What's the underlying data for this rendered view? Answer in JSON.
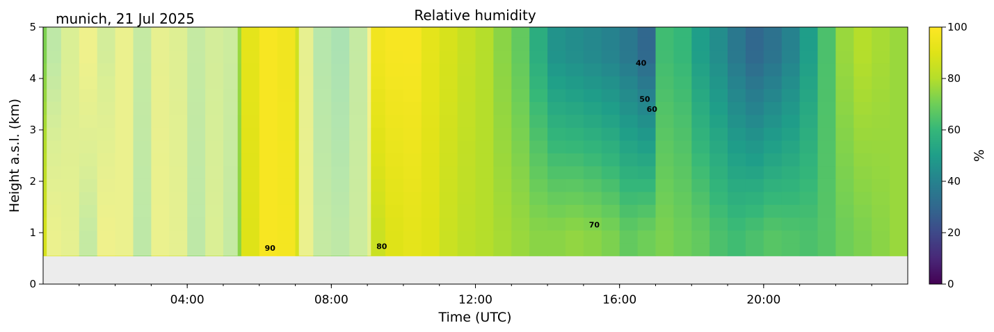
{
  "chart_data": {
    "type": "heatmap",
    "title": "Relative humidity",
    "subtitle": "munich, 21 Jul 2025",
    "xlabel": "Time (UTC)",
    "ylabel": "Height a.s.l. (km)",
    "xlim_hours": [
      0,
      24
    ],
    "ylim": [
      0,
      5
    ],
    "x_ticks": [
      "04:00",
      "08:00",
      "12:00",
      "16:00",
      "20:00"
    ],
    "x_tick_hours": [
      4,
      8,
      12,
      16,
      20
    ],
    "y_ticks": [
      "0",
      "1",
      "2",
      "3",
      "4",
      "5"
    ],
    "y_tick_values": [
      0,
      1,
      2,
      3,
      4,
      5
    ],
    "colorbar": {
      "label": "%",
      "range": [
        0,
        100
      ],
      "ticks": [
        "0",
        "20",
        "40",
        "60",
        "80",
        "100"
      ],
      "tick_values": [
        0,
        20,
        40,
        60,
        80,
        100
      ]
    },
    "data_floor_km": 0.55,
    "contour_labels": [
      {
        "text": "90",
        "hour": 6.3,
        "height": 0.65
      },
      {
        "text": "80",
        "hour": 9.4,
        "height": 0.68
      },
      {
        "text": "70",
        "hour": 15.3,
        "height": 1.1
      },
      {
        "text": "60",
        "hour": 16.9,
        "height": 3.35
      },
      {
        "text": "50",
        "hour": 16.7,
        "height": 3.55
      },
      {
        "text": "40",
        "hour": 16.6,
        "height": 4.25
      }
    ],
    "masked_periods_hours": [
      [
        0.1,
        5.4
      ],
      [
        7.1,
        9.1
      ]
    ],
    "time_columns_hours": [
      0.25,
      0.75,
      1.25,
      1.75,
      2.25,
      2.75,
      3.25,
      3.75,
      4.25,
      4.75,
      5.25,
      5.75,
      6.25,
      6.75,
      7.25,
      7.75,
      8.25,
      8.75,
      9.25,
      9.75,
      10.25,
      10.75,
      11.25,
      11.75,
      12.25,
      12.75,
      13.25,
      13.75,
      14.25,
      14.75,
      15.25,
      15.75,
      16.25,
      16.75,
      17.25,
      17.75,
      18.25,
      18.75,
      19.25,
      19.75,
      20.25,
      20.75,
      21.25,
      21.75,
      22.25,
      22.75,
      23.25,
      23.75
    ],
    "rh_at_1km_percent": [
      88,
      85,
      74,
      90,
      88,
      72,
      88,
      85,
      72,
      80,
      74,
      90,
      98,
      97,
      88,
      74,
      72,
      76,
      85,
      90,
      92,
      90,
      85,
      82,
      80,
      78,
      76,
      74,
      74,
      75,
      74,
      72,
      68,
      70,
      72,
      70,
      68,
      64,
      62,
      64,
      66,
      65,
      64,
      66,
      70,
      72,
      74,
      76
    ],
    "rh_at_4_5km_percent": [
      72,
      80,
      90,
      78,
      88,
      74,
      86,
      82,
      74,
      78,
      76,
      92,
      98,
      96,
      86,
      70,
      66,
      74,
      96,
      98,
      98,
      92,
      88,
      84,
      80,
      74,
      68,
      56,
      46,
      44,
      42,
      40,
      36,
      30,
      62,
      60,
      50,
      44,
      36,
      30,
      34,
      40,
      50,
      64,
      76,
      80,
      78,
      76
    ]
  }
}
